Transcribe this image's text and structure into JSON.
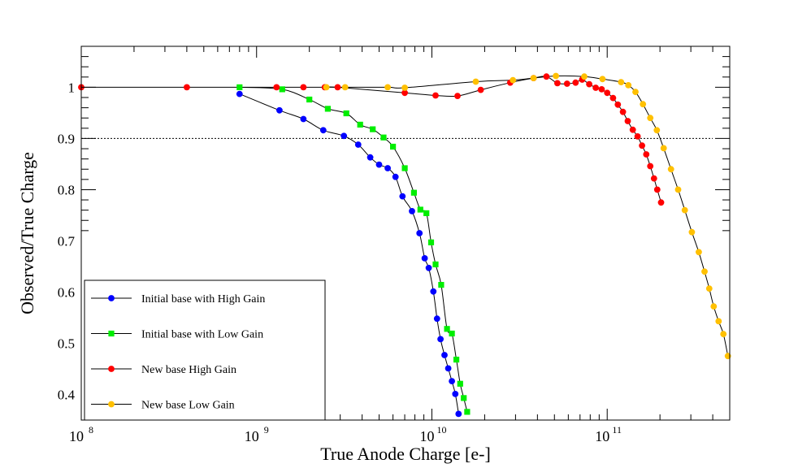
{
  "chart_data": {
    "type": "scatter",
    "title": "",
    "xlabel": "True Anode Charge [e-]",
    "ylabel": "Observed/True Charge",
    "xscale": "log",
    "xlim": [
      100000000,
      500000000000
    ],
    "ylim": [
      0.35,
      1.08
    ],
    "grid": false,
    "legend_position": "bottom-left",
    "x_major_ticks": [
      {
        "value": 100000000,
        "base": "10",
        "exp": "8"
      },
      {
        "value": 1000000000,
        "base": "10",
        "exp": "9"
      },
      {
        "value": 10000000000,
        "base": "10",
        "exp": "10"
      },
      {
        "value": 100000000000,
        "base": "10",
        "exp": "11"
      }
    ],
    "y_ticks": [
      {
        "value": 0.4,
        "label": "0.4"
      },
      {
        "value": 0.5,
        "label": "0.5"
      },
      {
        "value": 0.6,
        "label": "0.6"
      },
      {
        "value": 0.7,
        "label": "0.7"
      },
      {
        "value": 0.8,
        "label": "0.8"
      },
      {
        "value": 0.9,
        "label": "0.9"
      },
      {
        "value": 1.0,
        "label": "1"
      }
    ],
    "reference_line": {
      "y": 0.9,
      "x_range": [
        100000000,
        400000000000
      ],
      "style": "dotted"
    },
    "series": [
      {
        "name": "Initial base with High Gain",
        "color": "#0000ff",
        "marker": "circle",
        "x": [
          800000000,
          1350000000,
          1850000000,
          2400000000,
          3150000000,
          3800000000,
          4450000000,
          5000000000,
          5600000000,
          6200000000,
          6800000000,
          7700000000,
          8500000000,
          9100000000,
          9600000000,
          10200000000,
          10700000000,
          11200000000,
          11800000000,
          12400000000,
          13000000000,
          13600000000,
          14200000000
        ],
        "y": [
          0.987,
          0.955,
          0.938,
          0.916,
          0.905,
          0.888,
          0.863,
          0.849,
          0.842,
          0.825,
          0.787,
          0.758,
          0.715,
          0.666,
          0.647,
          0.601,
          0.548,
          0.508,
          0.477,
          0.451,
          0.426,
          0.401,
          0.362
        ]
      },
      {
        "name": "Initial base with Low Gain",
        "color": "#00ee00",
        "marker": "square",
        "x": [
          800000000,
          1400000000,
          2000000000,
          2550000000,
          3250000000,
          3900000000,
          4600000000,
          5300000000,
          6000000000,
          7000000000,
          7900000000,
          8600000000,
          9300000000,
          9900000000,
          10500000000,
          11300000000,
          12200000000,
          13000000000,
          13800000000,
          14500000000,
          15200000000,
          15900000000
        ],
        "y": [
          1.0,
          0.996,
          0.976,
          0.958,
          0.949,
          0.927,
          0.918,
          0.902,
          0.884,
          0.842,
          0.794,
          0.761,
          0.754,
          0.697,
          0.654,
          0.614,
          0.528,
          0.519,
          0.468,
          0.421,
          0.393,
          0.366
        ]
      },
      {
        "name": "New base High Gain",
        "color": "#ff0000",
        "marker": "circle",
        "x": [
          100000000,
          400000000,
          1300000000,
          1850000000,
          2450000000,
          2900000000,
          7000000000,
          10500000000,
          14000000000,
          19000000000,
          28000000000,
          38000000000,
          45000000000,
          52000000000,
          59000000000,
          66000000000,
          72000000000,
          79000000000,
          86000000000,
          93000000000,
          100000000000,
          108000000000,
          115000000000,
          123000000000,
          131000000000,
          140000000000,
          149000000000,
          158000000000,
          167000000000,
          176000000000,
          185000000000,
          193000000000,
          203000000000
        ],
        "y": [
          1.0,
          1.0,
          1.0,
          1.0,
          1.0,
          1.0,
          0.989,
          0.984,
          0.983,
          0.995,
          1.009,
          1.018,
          1.021,
          1.008,
          1.007,
          1.009,
          1.015,
          1.006,
          0.999,
          0.996,
          0.989,
          0.979,
          0.966,
          0.952,
          0.934,
          0.917,
          0.904,
          0.886,
          0.869,
          0.846,
          0.822,
          0.8,
          0.775
        ]
      },
      {
        "name": "New base Low Gain",
        "color": "#ffc000",
        "marker": "circle",
        "x": [
          2500000000,
          3200000000,
          5600000000,
          7000000000,
          17800000000,
          29000000000,
          38000000000,
          51000000000,
          74000000000,
          94000000000,
          120000000000,
          132000000000,
          145000000000,
          160000000000,
          176000000000,
          192000000000,
          210000000000,
          231000000000,
          254000000000,
          277000000000,
          304000000000,
          333000000000,
          359000000000,
          382000000000,
          405000000000,
          432000000000,
          460000000000,
          488000000000
        ],
        "y": [
          1.0,
          1.0,
          1.0,
          0.999,
          1.011,
          1.014,
          1.018,
          1.022,
          1.021,
          1.016,
          1.01,
          1.004,
          0.991,
          0.967,
          0.94,
          0.916,
          0.881,
          0.84,
          0.8,
          0.76,
          0.717,
          0.678,
          0.64,
          0.607,
          0.572,
          0.543,
          0.518,
          0.475
        ]
      }
    ]
  }
}
